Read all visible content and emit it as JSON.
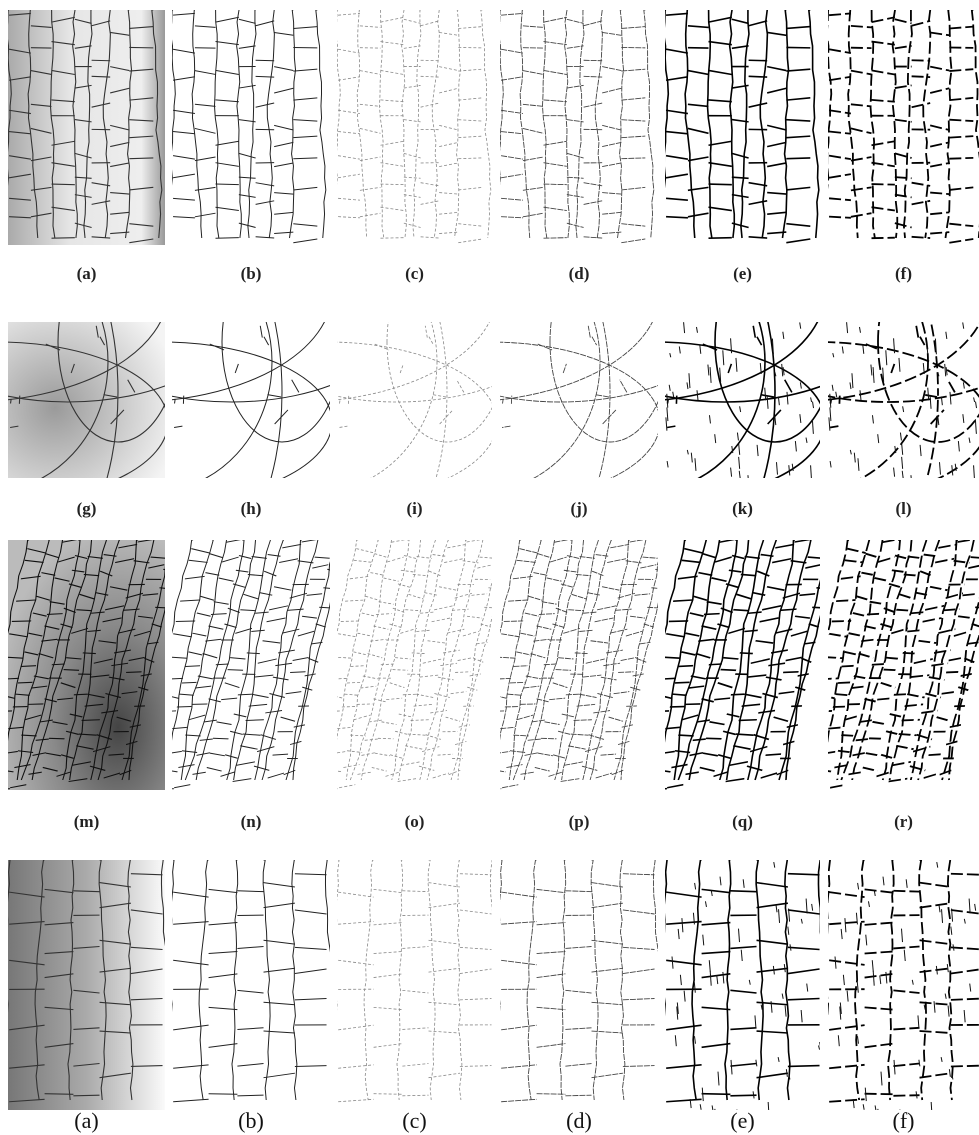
{
  "figure": {
    "rows": [
      {
        "labels": [
          "(a)",
          "(b)",
          "(c)",
          "(d)",
          "(e)",
          "(f)"
        ]
      },
      {
        "labels": [
          "(g)",
          "(h)",
          "(i)",
          "(j)",
          "(k)",
          "(l)"
        ]
      },
      {
        "labels": [
          "(m)",
          "(n)",
          "(o)",
          "(p)",
          "(q)",
          "(r)"
        ]
      },
      {
        "labels": [
          "(a)",
          "(b)",
          "(c)",
          "(d)",
          "(e)",
          "(f)"
        ]
      }
    ]
  }
}
